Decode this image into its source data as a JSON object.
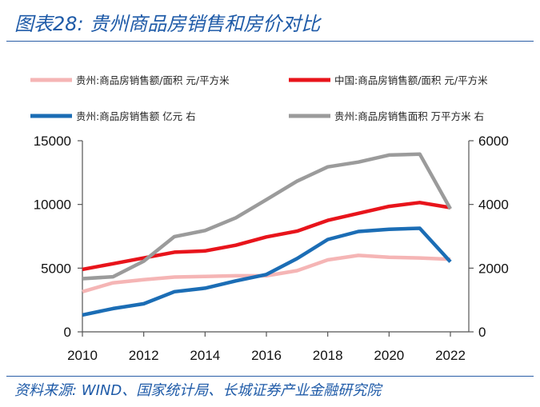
{
  "header": {
    "title": "图表28:  贵州商品房销售和房价对比"
  },
  "footer": {
    "source": "资料来源: WIND、国家统计局、长城证券产业金融研究院"
  },
  "chart_data": {
    "type": "line",
    "x": [
      2010,
      2011,
      2012,
      2013,
      2014,
      2015,
      2016,
      2017,
      2018,
      2019,
      2020,
      2021,
      2022
    ],
    "x_ticks": [
      "2010",
      "2012",
      "2014",
      "2016",
      "2018",
      "2020",
      "2022"
    ],
    "left_axis": {
      "ylim": [
        0,
        15000
      ],
      "ticks": [
        "0",
        "5000",
        "10000",
        "15000"
      ]
    },
    "right_axis": {
      "ylim": [
        0,
        6000
      ],
      "ticks": [
        "0",
        "2000",
        "4000",
        "6000"
      ]
    },
    "legend_position": "top",
    "series": [
      {
        "name": "贵州:商品房销售额/面积 元/平方米",
        "axis": "left",
        "color": "#f5b5b5",
        "values": [
          3150,
          3850,
          4100,
          4300,
          4350,
          4400,
          4400,
          4800,
          5650,
          6000,
          5850,
          5800,
          5700
        ]
      },
      {
        "name": "中国:商品房销售额/面积 元/平方米",
        "axis": "left",
        "color": "#e8141b",
        "values": [
          4900,
          5350,
          5800,
          6250,
          6350,
          6800,
          7450,
          7900,
          8750,
          9300,
          9850,
          10150,
          9750
        ]
      },
      {
        "name": "贵州:商品房销售额 亿元 右",
        "axis": "right",
        "color": "#1b6db5",
        "values": [
          530,
          730,
          880,
          1260,
          1370,
          1600,
          1800,
          2300,
          2900,
          3150,
          3220,
          3250,
          2200
        ]
      },
      {
        "name": "贵州:商品房销售面积 万平方米 右",
        "axis": "right",
        "color": "#9b9b9b",
        "values": [
          1670,
          1730,
          2220,
          2990,
          3180,
          3580,
          4150,
          4730,
          5180,
          5330,
          5550,
          5580,
          3860
        ]
      }
    ]
  }
}
